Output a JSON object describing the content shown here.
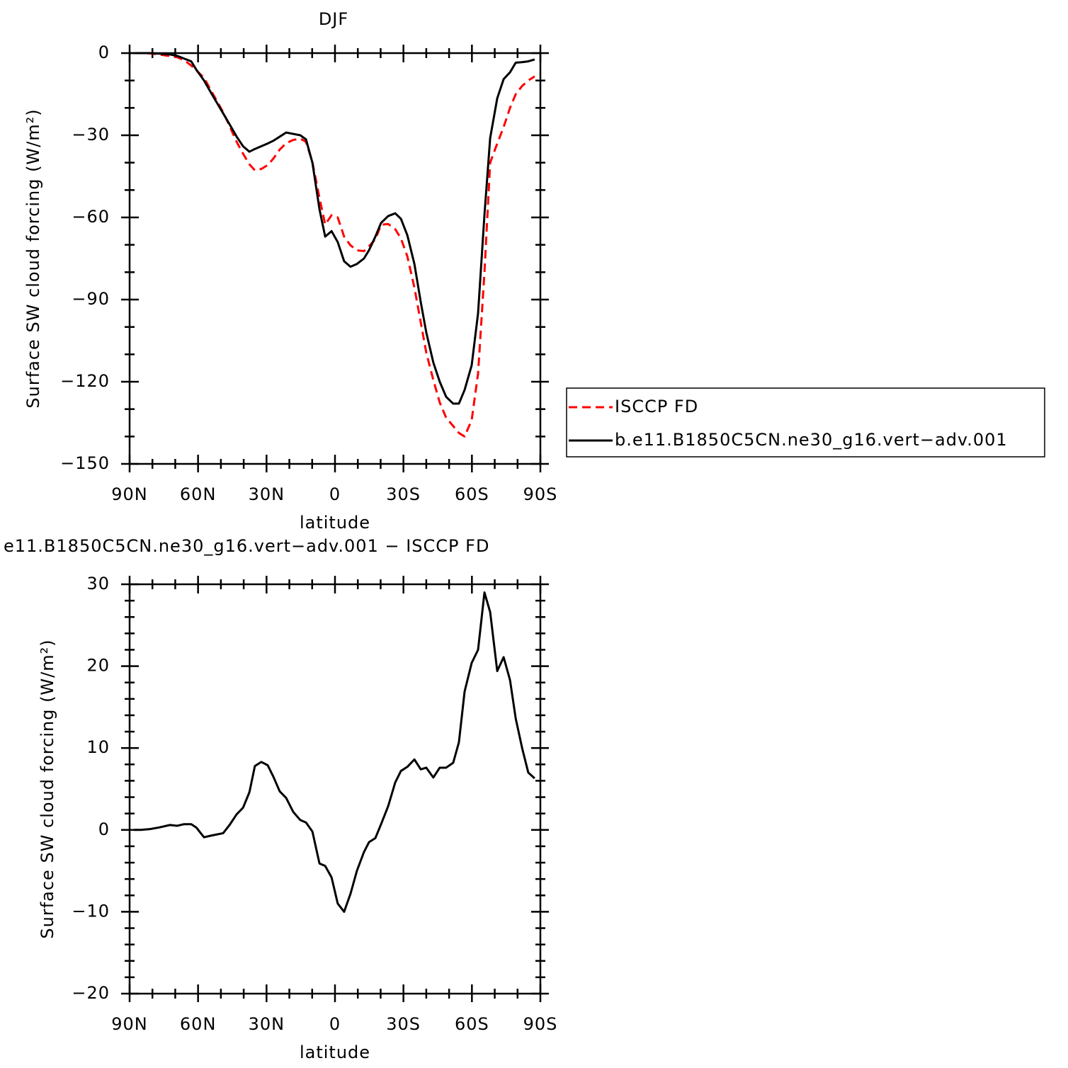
{
  "chart_data": [
    {
      "type": "line",
      "title": "DJF",
      "x_label": "latitude",
      "y_label": "Surface SW cloud forcing (W/m²)",
      "x": [
        88.1,
        85,
        81,
        77,
        72.3,
        69.2,
        66.1,
        63,
        60.8,
        57.4,
        54.3,
        49,
        46.2,
        43.1,
        40.3,
        37.5,
        35.1,
        32.3,
        29.5,
        27,
        24.2,
        21.4,
        18.3,
        15.2,
        12.7,
        9.9,
        6.8,
        4.3,
        1.5,
        -1.2,
        -4,
        -6.8,
        -9.6,
        -12.7,
        -14.9,
        -17.7,
        -20.2,
        -23.3,
        -26.4,
        -28.9,
        -31.7,
        -34.8,
        -37.6,
        -40,
        -43.1,
        -45.9,
        -48.7,
        -51.8,
        -54.3,
        -56.8,
        -59.9,
        -62.7,
        -65.5,
        -68,
        -71.1,
        -73.9,
        -76.7,
        -79.2,
        -82,
        -84.7,
        -87.5
      ],
      "xlim": [
        90,
        -90
      ],
      "xticks": [
        {
          "value": 90,
          "label": "90N"
        },
        {
          "value": 60,
          "label": "60N"
        },
        {
          "value": 30,
          "label": "30N"
        },
        0,
        {
          "value": -30,
          "label": "30S"
        },
        {
          "value": -60,
          "label": "60S"
        },
        {
          "value": -90,
          "label": "90S"
        }
      ],
      "ylim": [
        -150,
        0
      ],
      "yticks": [
        {
          "value": -150,
          "label": "−150"
        },
        {
          "value": -120,
          "label": "−120"
        },
        {
          "value": -90,
          "label": "−90"
        },
        {
          "value": -60,
          "label": "−60"
        },
        {
          "value": -30,
          "label": "−30"
        },
        0
      ],
      "legend": "right",
      "series": [
        {
          "name": "ISCCP FD",
          "color": "#ff0000",
          "dash": "dashed",
          "values": [
            0,
            0,
            -0.1,
            -0.5,
            -1.1,
            -1.5,
            -2.6,
            -4.5,
            -6.3,
            -9,
            -13.7,
            -21.6,
            -26.6,
            -32.4,
            -36.7,
            -40.6,
            -42.8,
            -42.3,
            -40.9,
            -38.5,
            -35.2,
            -32.9,
            -31.7,
            -31.2,
            -32.4,
            -39.8,
            -52.9,
            -62.6,
            -59.2,
            -60,
            -67,
            -70.2,
            -72,
            -72.3,
            -70.5,
            -68,
            -62.7,
            -62.4,
            -64.3,
            -67.7,
            -74.2,
            -85.6,
            -98.4,
            -109.4,
            -119.4,
            -127.6,
            -133.1,
            -136.2,
            -138.7,
            -140,
            -134,
            -117,
            -80,
            -40,
            -33,
            -27,
            -20,
            -15,
            -12,
            -10,
            -8.5
          ]
        },
        {
          "name": "b.e11.B1850C5CN.ne30_g16.vert−adv.001",
          "color": "#000000",
          "dash": "solid",
          "values": [
            0,
            0,
            0,
            -0.2,
            -0.5,
            -1,
            -2,
            -3,
            -6,
            -10,
            -14.5,
            -22,
            -26,
            -30.5,
            -34,
            -36,
            -35,
            -34,
            -33,
            -32,
            -30.5,
            -29,
            -29.5,
            -30,
            -31.5,
            -40,
            -57,
            -67,
            -65,
            -69,
            -76,
            -78,
            -77,
            -75,
            -72,
            -67,
            -62,
            -59.5,
            -58.5,
            -60.5,
            -66.5,
            -77,
            -91,
            -102,
            -113,
            -120,
            -125.5,
            -128,
            -128,
            -123,
            -114,
            -95,
            -59,
            -31,
            -16.5,
            -9.5,
            -7,
            -3.5,
            -3.3,
            -3,
            -2.3
          ]
        }
      ]
    },
    {
      "type": "line",
      "title": "e11.B1850C5CN.ne30_g16.vert−adv.001 − ISCCP FD",
      "x_label": "latitude",
      "y_label": "Surface SW cloud forcing (W/m²)",
      "x": [
        88.1,
        85,
        81,
        77,
        72.3,
        69.2,
        66.1,
        63,
        60.8,
        57.4,
        54.3,
        49,
        46.2,
        43.1,
        40.3,
        37.5,
        35.1,
        32.3,
        29.5,
        27,
        24.2,
        21.4,
        18.3,
        15.2,
        12.7,
        9.9,
        6.8,
        4.3,
        1.5,
        -1.2,
        -4,
        -6.8,
        -9.6,
        -12.7,
        -14.9,
        -17.7,
        -20.2,
        -23.3,
        -26.4,
        -28.9,
        -31.7,
        -34.8,
        -37.6,
        -40,
        -43.1,
        -45.9,
        -48.7,
        -51.8,
        -54.3,
        -56.8,
        -59.9,
        -62.7,
        -65.5,
        -68,
        -71.1,
        -73.9,
        -76.7,
        -79.2,
        -82,
        -84.7,
        -87.5
      ],
      "xlim": [
        90,
        -90
      ],
      "xticks": [
        {
          "value": 90,
          "label": "90N"
        },
        {
          "value": 60,
          "label": "60N"
        },
        {
          "value": 30,
          "label": "30N"
        },
        0,
        {
          "value": -30,
          "label": "30S"
        },
        {
          "value": -60,
          "label": "60S"
        },
        {
          "value": -90,
          "label": "90S"
        }
      ],
      "ylim": [
        -20,
        30
      ],
      "yticks": [
        {
          "value": -20,
          "label": "−20"
        },
        {
          "value": -10,
          "label": "−10"
        },
        0,
        10,
        20,
        30
      ],
      "series": [
        {
          "color": "#000000",
          "dash": "solid",
          "values": [
            0,
            0,
            0.1,
            0.3,
            0.6,
            0.5,
            0.7,
            0.7,
            0.3,
            -0.9,
            -0.7,
            -0.4,
            0.6,
            1.9,
            2.7,
            4.6,
            7.8,
            8.3,
            7.9,
            6.5,
            4.7,
            3.9,
            2.2,
            1.2,
            0.9,
            -0.2,
            -4.1,
            -4.4,
            -5.8,
            -9,
            -10,
            -7.8,
            -5,
            -2.7,
            -1.5,
            -1,
            0.7,
            2.9,
            5.8,
            7.2,
            7.7,
            8.6,
            7.4,
            7.6,
            6.4,
            7.6,
            7.6,
            8.2,
            10.7,
            16.9,
            20.4,
            22,
            29,
            26.6,
            19.4,
            21.1,
            18.3,
            13.6,
            10,
            7,
            6.3
          ]
        }
      ]
    }
  ]
}
